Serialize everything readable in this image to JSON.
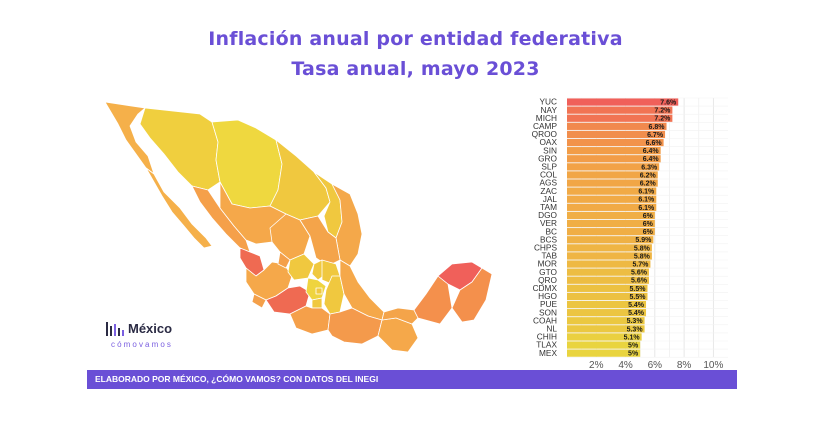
{
  "title": "Inflación anual por entidad federativa",
  "subtitle": "Tasa anual, mayo 2023",
  "footer": "ELABORADO POR MÉXICO, ¿CÓMO VAMOS? CON DATOS DEL INEGI",
  "logo": {
    "word": "México",
    "sub": "cómovamos"
  },
  "colors": {
    "accent": "#6a4fd6",
    "high": "#f0605a",
    "mid": "#f2a247",
    "low": "#e9d43f"
  },
  "chart_data": {
    "type": "bar",
    "orientation": "horizontal",
    "categories": [
      "YUC",
      "NAY",
      "MICH",
      "CAMP",
      "QROO",
      "OAX",
      "SIN",
      "GRO",
      "SLP",
      "COL",
      "AGS",
      "ZAC",
      "JAL",
      "TAM",
      "DGO",
      "VER",
      "BC",
      "BCS",
      "CHPS",
      "TAB",
      "MOR",
      "GTO",
      "QRO",
      "CDMX",
      "HGO",
      "PUE",
      "SON",
      "COAH",
      "NL",
      "CHIH",
      "TLAX",
      "MEX"
    ],
    "values": [
      7.6,
      7.2,
      7.2,
      6.8,
      6.7,
      6.6,
      6.4,
      6.4,
      6.3,
      6.2,
      6.2,
      6.1,
      6.1,
      6.1,
      6,
      6,
      6,
      5.9,
      5.8,
      5.8,
      5.7,
      5.6,
      5.6,
      5.5,
      5.5,
      5.4,
      5.4,
      5.3,
      5.3,
      5.1,
      5,
      5
    ],
    "labels": [
      "7.6%",
      "7.2%",
      "7.2%",
      "6.8%",
      "6.7%",
      "6.6%",
      "6.4%",
      "6.4%",
      "6.3%",
      "6.2%",
      "6.2%",
      "6.1%",
      "6.1%",
      "6.1%",
      "6%",
      "6%",
      "6%",
      "5.9%",
      "5.8%",
      "5.8%",
      "5.7%",
      "5.6%",
      "5.6%",
      "5.5%",
      "5.5%",
      "5.4%",
      "5.4%",
      "5.3%",
      "5.3%",
      "5.1%",
      "5%",
      "5%"
    ],
    "xticks": [
      "2%",
      "4%",
      "6%",
      "8%",
      "10%"
    ],
    "xtick_values": [
      2,
      4,
      6,
      8,
      10
    ],
    "xlim": [
      0,
      11
    ],
    "grid": true
  }
}
